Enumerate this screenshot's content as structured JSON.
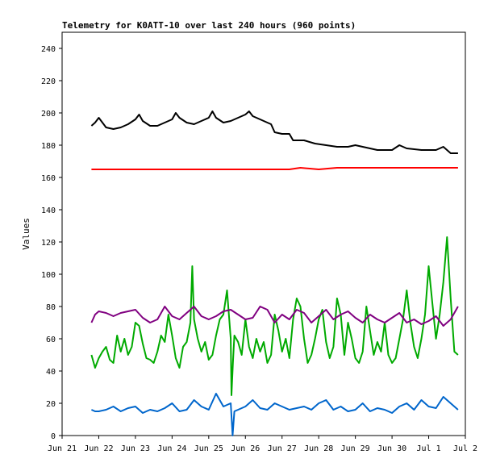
{
  "chart_data": {
    "type": "line",
    "title": "Telemetry for K0ATT-10 over last 240 hours (960 points)",
    "xlabel": "",
    "ylabel": "Values",
    "ylim": [
      0,
      250
    ],
    "yticks": [
      0,
      20,
      40,
      60,
      80,
      100,
      120,
      140,
      160,
      180,
      200,
      220,
      240
    ],
    "xlim": [
      0,
      11
    ],
    "xtick_labels": [
      "Jun 21",
      "Jun 22",
      "Jun 23",
      "Jun 24",
      "Jun 25",
      "Jun 26",
      "Jun 27",
      "Jun 28",
      "Jun 29",
      "Jun 30",
      "Jul 1",
      "Jul 2"
    ],
    "grid": false,
    "legend": "none",
    "series": [
      {
        "color": "#000000",
        "x": [
          0.8,
          0.9,
          1.0,
          1.1,
          1.2,
          1.4,
          1.6,
          1.8,
          2.0,
          2.1,
          2.2,
          2.4,
          2.6,
          2.8,
          3.0,
          3.1,
          3.2,
          3.4,
          3.6,
          3.8,
          4.0,
          4.1,
          4.2,
          4.4,
          4.6,
          4.8,
          5.0,
          5.1,
          5.2,
          5.4,
          5.6,
          5.7,
          5.8,
          6.0,
          6.2,
          6.3,
          6.6,
          6.9,
          7.2,
          7.5,
          7.8,
          8.0,
          8.2,
          8.6,
          9.0,
          9.2,
          9.4,
          9.8,
          10.2,
          10.4,
          10.6,
          10.8
        ],
        "values": [
          192,
          194,
          197,
          194,
          191,
          190,
          191,
          193,
          196,
          199,
          195,
          192,
          192,
          194,
          196,
          200,
          197,
          194,
          193,
          195,
          197,
          201,
          197,
          194,
          195,
          197,
          199,
          201,
          198,
          196,
          194,
          193,
          188,
          187,
          187,
          183,
          183,
          181,
          180,
          179,
          179,
          180,
          179,
          177,
          177,
          180,
          178,
          177,
          177,
          179,
          175,
          175
        ]
      },
      {
        "color": "#ff0000",
        "x": [
          0.8,
          6.2,
          6.5,
          7.0,
          7.5,
          8.0,
          9.0,
          10.0,
          10.8
        ],
        "values": [
          165,
          165,
          166,
          165,
          166,
          166,
          166,
          166,
          166
        ]
      },
      {
        "color": "#00aa00",
        "x": [
          0.8,
          0.9,
          1.0,
          1.1,
          1.2,
          1.3,
          1.4,
          1.5,
          1.6,
          1.7,
          1.8,
          1.9,
          2.0,
          2.1,
          2.2,
          2.3,
          2.4,
          2.5,
          2.6,
          2.7,
          2.8,
          2.9,
          3.0,
          3.1,
          3.2,
          3.3,
          3.4,
          3.5,
          3.55,
          3.6,
          3.7,
          3.8,
          3.9,
          4.0,
          4.1,
          4.2,
          4.3,
          4.4,
          4.5,
          4.6,
          4.62,
          4.66,
          4.7,
          4.8,
          4.9,
          5.0,
          5.1,
          5.2,
          5.3,
          5.4,
          5.5,
          5.6,
          5.7,
          5.8,
          5.9,
          6.0,
          6.1,
          6.2,
          6.3,
          6.4,
          6.5,
          6.6,
          6.7,
          6.8,
          6.9,
          7.0,
          7.1,
          7.2,
          7.3,
          7.4,
          7.5,
          7.6,
          7.7,
          7.8,
          7.9,
          8.0,
          8.1,
          8.2,
          8.3,
          8.4,
          8.5,
          8.6,
          8.7,
          8.8,
          8.9,
          9.0,
          9.1,
          9.2,
          9.3,
          9.4,
          9.5,
          9.6,
          9.7,
          9.8,
          9.9,
          10.0,
          10.1,
          10.2,
          10.3,
          10.4,
          10.5,
          10.6,
          10.7,
          10.8
        ],
        "values": [
          50,
          42,
          48,
          52,
          55,
          47,
          45,
          62,
          52,
          60,
          50,
          55,
          70,
          68,
          57,
          48,
          47,
          45,
          52,
          62,
          58,
          75,
          62,
          48,
          42,
          55,
          58,
          70,
          105,
          72,
          60,
          52,
          58,
          47,
          50,
          62,
          72,
          75,
          90,
          60,
          25,
          45,
          62,
          58,
          50,
          72,
          55,
          48,
          60,
          52,
          58,
          45,
          50,
          75,
          65,
          52,
          60,
          48,
          72,
          85,
          80,
          60,
          45,
          50,
          60,
          72,
          78,
          58,
          48,
          55,
          85,
          75,
          50,
          70,
          60,
          48,
          45,
          52,
          80,
          65,
          50,
          58,
          52,
          70,
          50,
          45,
          48,
          60,
          72,
          90,
          70,
          55,
          48,
          60,
          75,
          105,
          82,
          60,
          75,
          95,
          123,
          85,
          52,
          50
        ]
      },
      {
        "color": "#800080",
        "x": [
          0.8,
          0.9,
          1.0,
          1.2,
          1.4,
          1.6,
          1.8,
          2.0,
          2.2,
          2.4,
          2.6,
          2.8,
          3.0,
          3.2,
          3.4,
          3.6,
          3.8,
          4.0,
          4.2,
          4.4,
          4.6,
          4.8,
          5.0,
          5.2,
          5.4,
          5.6,
          5.8,
          6.0,
          6.2,
          6.4,
          6.6,
          6.8,
          7.0,
          7.2,
          7.4,
          7.6,
          7.8,
          8.0,
          8.2,
          8.4,
          8.6,
          8.8,
          9.0,
          9.2,
          9.4,
          9.6,
          9.8,
          10.0,
          10.2,
          10.4,
          10.6,
          10.8
        ],
        "values": [
          70,
          75,
          77,
          76,
          74,
          76,
          77,
          78,
          73,
          70,
          72,
          80,
          74,
          72,
          76,
          80,
          74,
          72,
          74,
          77,
          78,
          75,
          72,
          73,
          80,
          78,
          70,
          75,
          72,
          78,
          76,
          70,
          74,
          78,
          72,
          75,
          77,
          73,
          70,
          75,
          72,
          70,
          73,
          76,
          70,
          72,
          69,
          71,
          74,
          68,
          72,
          80
        ]
      },
      {
        "color": "#0066cc",
        "x": [
          0.8,
          0.9,
          1.0,
          1.2,
          1.4,
          1.6,
          1.8,
          2.0,
          2.2,
          2.4,
          2.6,
          2.8,
          3.0,
          3.2,
          3.4,
          3.6,
          3.8,
          4.0,
          4.2,
          4.4,
          4.6,
          4.65,
          4.7,
          4.8,
          5.0,
          5.2,
          5.4,
          5.6,
          5.8,
          6.0,
          6.2,
          6.4,
          6.6,
          6.8,
          7.0,
          7.2,
          7.4,
          7.6,
          7.8,
          8.0,
          8.2,
          8.4,
          8.6,
          8.8,
          9.0,
          9.2,
          9.4,
          9.6,
          9.8,
          10.0,
          10.2,
          10.4,
          10.6,
          10.8
        ],
        "values": [
          16,
          15,
          15,
          16,
          18,
          15,
          17,
          18,
          14,
          16,
          15,
          17,
          20,
          15,
          16,
          22,
          18,
          16,
          26,
          18,
          20,
          0,
          15,
          16,
          18,
          22,
          17,
          16,
          20,
          18,
          16,
          17,
          18,
          16,
          20,
          22,
          16,
          18,
          15,
          16,
          20,
          15,
          17,
          16,
          14,
          18,
          20,
          16,
          22,
          18,
          17,
          24,
          20,
          16
        ]
      }
    ]
  }
}
